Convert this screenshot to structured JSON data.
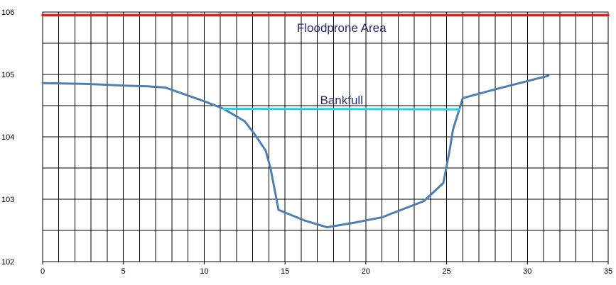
{
  "chart_data": {
    "type": "line",
    "title": "",
    "xlabel": "",
    "ylabel": "",
    "xlim": [
      0,
      35
    ],
    "ylim": [
      102,
      106
    ],
    "x_ticks": [
      0,
      5,
      10,
      15,
      20,
      25,
      30,
      35
    ],
    "y_ticks": [
      102,
      103,
      104,
      105,
      106
    ],
    "grid": true,
    "x_minor_step": 1,
    "y_minor_step": 0.5,
    "series": [
      {
        "color": "#4f7fb0",
        "points": [
          [
            0,
            104.86
          ],
          [
            2.5,
            104.85
          ],
          [
            3.5,
            104.84
          ],
          [
            5,
            104.82
          ],
          [
            6.5,
            104.81
          ],
          [
            7.6,
            104.79
          ],
          [
            10,
            104.57
          ],
          [
            11.2,
            104.45
          ],
          [
            12.5,
            104.25
          ],
          [
            13.1,
            104.05
          ],
          [
            13.8,
            103.78
          ],
          [
            14.1,
            103.5
          ],
          [
            14.6,
            102.83
          ],
          [
            16.2,
            102.66
          ],
          [
            17.6,
            102.55
          ],
          [
            19.4,
            102.63
          ],
          [
            21,
            102.71
          ],
          [
            23.6,
            102.97
          ],
          [
            24.8,
            103.26
          ],
          [
            25.2,
            103.8
          ],
          [
            25.4,
            104.12
          ],
          [
            26,
            104.62
          ],
          [
            28,
            104.76
          ],
          [
            31.3,
            104.98
          ]
        ]
      },
      {
        "color": "#22d3e6",
        "points": [
          [
            11.2,
            104.45
          ],
          [
            25.8,
            104.44
          ]
        ]
      },
      {
        "color": "#e01e1e",
        "points": [
          [
            0,
            105.95
          ],
          [
            35,
            105.95
          ]
        ]
      }
    ],
    "annotations": [
      {
        "text": "Floodprone Area",
        "x": 18.5,
        "y": 105.75
      },
      {
        "text": "Bankfull",
        "x": 18.5,
        "y": 104.59
      }
    ]
  }
}
